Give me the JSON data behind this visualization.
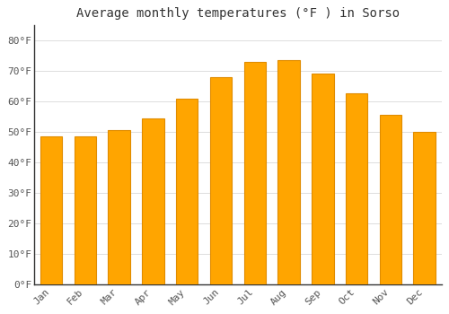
{
  "title": "Average monthly temperatures (°F ) in Sorso",
  "months": [
    "Jan",
    "Feb",
    "Mar",
    "Apr",
    "May",
    "Jun",
    "Jul",
    "Aug",
    "Sep",
    "Oct",
    "Nov",
    "Dec"
  ],
  "values": [
    48.5,
    48.5,
    50.5,
    54.5,
    61.0,
    68.0,
    73.0,
    73.5,
    69.0,
    62.5,
    55.5,
    50.0
  ],
  "bar_color_main": "#FFA500",
  "bar_color_edge": "#E08C00",
  "background_color": "#FFFFFF",
  "ytick_labels": [
    "0°F",
    "10°F",
    "20°F",
    "30°F",
    "40°F",
    "50°F",
    "60°F",
    "70°F",
    "80°F"
  ],
  "ytick_values": [
    0,
    10,
    20,
    30,
    40,
    50,
    60,
    70,
    80
  ],
  "ylim": [
    0,
    85
  ],
  "title_fontsize": 10,
  "tick_fontsize": 8,
  "grid_color": "#DDDDDD",
  "text_color": "#555555",
  "title_color": "#333333",
  "spine_color": "#333333"
}
